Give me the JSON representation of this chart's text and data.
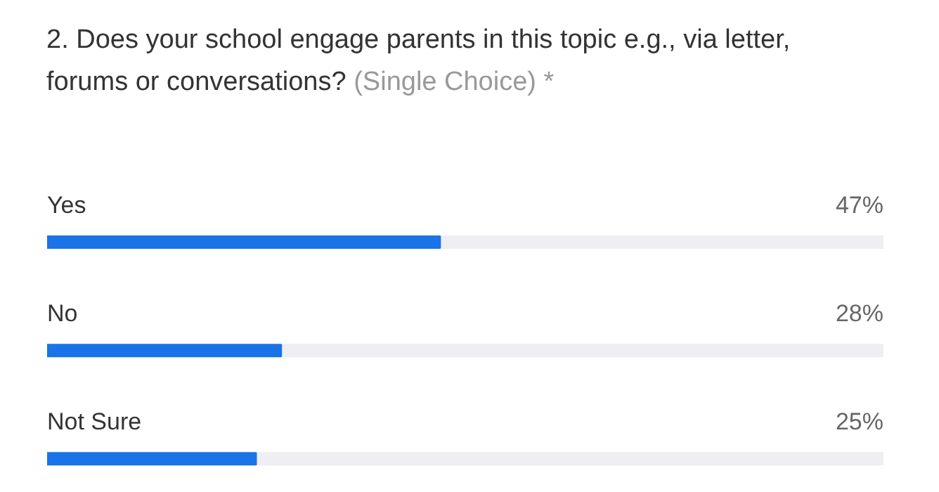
{
  "chart_data": {
    "type": "bar",
    "orientation": "horizontal",
    "title": "2. Does your school engage parents in this topic e.g., via letter, forums or conversations?",
    "subtitle": "(Single Choice) *",
    "categories": [
      "Yes",
      "No",
      "Not Sure"
    ],
    "values": [
      47,
      28,
      25
    ],
    "value_labels": [
      "47%",
      "28%",
      "25%"
    ],
    "color": "#1a73e8",
    "xlim": [
      0,
      100
    ],
    "tick_labels": false,
    "grid": false
  }
}
